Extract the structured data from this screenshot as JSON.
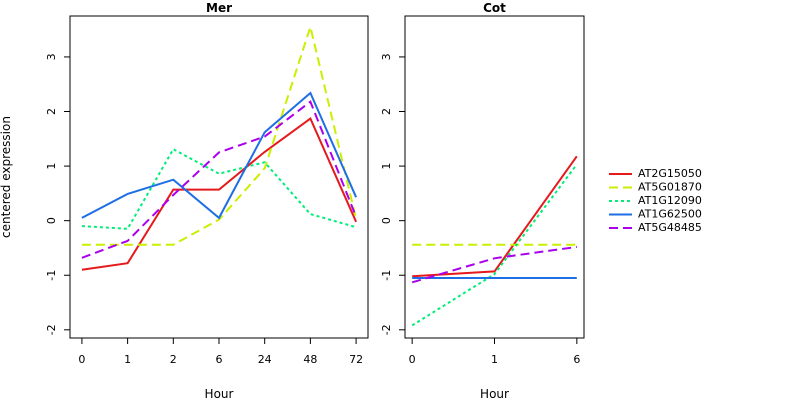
{
  "chart_data": {
    "type": "line",
    "ylabel": "centered expression",
    "ylim": [
      -2.15,
      3.75
    ],
    "yticks": [
      -2,
      -1,
      0,
      1,
      2,
      3
    ],
    "legend": {
      "placement": "right",
      "entries": [
        "AT2G15050",
        "AT5G01870",
        "AT1G12090",
        "AT1G62500",
        "AT5G48485"
      ]
    },
    "series_styles": [
      {
        "name": "AT2G15050",
        "color": "#e41a1c",
        "dash": "solid"
      },
      {
        "name": "AT5G01870",
        "color": "#ccee00",
        "dash": "dashed"
      },
      {
        "name": "AT1G12090",
        "color": "#00ee77",
        "dash": "dotted"
      },
      {
        "name": "AT1G62500",
        "color": "#1e6ee6",
        "dash": "solid"
      },
      {
        "name": "AT5G48485",
        "color": "#aa00ee",
        "dash": "dashed"
      }
    ],
    "panels": [
      {
        "title": "Mer",
        "xlabel": "Hour",
        "categories": [
          "0",
          "1",
          "2",
          "6",
          "24",
          "48",
          "72"
        ],
        "series": [
          {
            "name": "AT2G15050",
            "values": [
              -0.9,
              -0.78,
              0.57,
              0.57,
              1.26,
              1.87,
              -0.02
            ]
          },
          {
            "name": "AT5G01870",
            "values": [
              -0.44,
              -0.44,
              -0.44,
              0.02,
              0.96,
              3.55,
              0.03
            ]
          },
          {
            "name": "AT1G12090",
            "values": [
              -0.1,
              -0.15,
              1.31,
              0.86,
              1.07,
              0.12,
              -0.12
            ]
          },
          {
            "name": "AT1G62500",
            "values": [
              0.05,
              0.49,
              0.75,
              0.05,
              1.62,
              2.34,
              0.43
            ]
          },
          {
            "name": "AT5G48485",
            "values": [
              -0.68,
              -0.37,
              0.47,
              1.25,
              1.54,
              2.18,
              0.07
            ]
          }
        ]
      },
      {
        "title": "Cot",
        "xlabel": "Hour",
        "categories": [
          "0",
          "1",
          "6"
        ],
        "series": [
          {
            "name": "AT2G15050",
            "values": [
              -1.02,
              -0.93,
              1.18
            ]
          },
          {
            "name": "AT5G01870",
            "values": [
              -0.44,
              -0.44,
              -0.44
            ]
          },
          {
            "name": "AT1G12090",
            "values": [
              -1.92,
              -0.98,
              1.03
            ]
          },
          {
            "name": "AT1G62500",
            "values": [
              -1.05,
              -1.05,
              -1.05
            ]
          },
          {
            "name": "AT5G48485",
            "values": [
              -1.13,
              -0.69,
              -0.48
            ]
          }
        ]
      }
    ]
  }
}
